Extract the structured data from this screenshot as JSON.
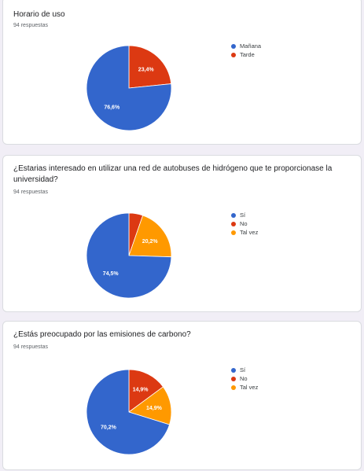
{
  "chart_data": [
    {
      "type": "pie",
      "title": "Horario de uso",
      "subtitle": "94 respuestas",
      "categories": [
        "Mañana",
        "Tarde"
      ],
      "values": [
        76.6,
        23.4
      ],
      "labels": [
        "76,6%",
        "23,4%"
      ],
      "colors": [
        "#3366cc",
        "#dc3912"
      ],
      "legend": "right"
    },
    {
      "type": "pie",
      "title": "¿Estarias interesado en utilizar una red de autobuses de hidrógeno que te proporcionase la universidad?",
      "subtitle": "94 respuestas",
      "categories": [
        "Sí",
        "No",
        "Tal vez"
      ],
      "values": [
        74.5,
        5.3,
        20.2
      ],
      "labels": [
        "74,5%",
        "",
        "20,2%"
      ],
      "colors": [
        "#3366cc",
        "#dc3912",
        "#ff9900"
      ],
      "legend": "right"
    },
    {
      "type": "pie",
      "title": "¿Estás preocupado por las emisiones de carbono?",
      "subtitle": "94 respuestas",
      "categories": [
        "Sí",
        "No",
        "Tal vez"
      ],
      "values": [
        70.2,
        14.9,
        14.9
      ],
      "labels": [
        "70,2%",
        "14,9%",
        "14,9%"
      ],
      "colors": [
        "#3366cc",
        "#dc3912",
        "#ff9900"
      ],
      "legend": "right"
    }
  ]
}
